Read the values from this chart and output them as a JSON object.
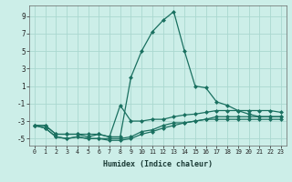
{
  "xlabel": "Humidex (Indice chaleur)",
  "bg_color": "#cceee8",
  "grid_color": "#aad8d0",
  "line_color": "#1a7060",
  "xlim": [
    -0.5,
    23.5
  ],
  "ylim": [
    -5.8,
    10.2
  ],
  "xticks": [
    0,
    1,
    2,
    3,
    4,
    5,
    6,
    7,
    8,
    9,
    10,
    11,
    12,
    13,
    14,
    15,
    16,
    17,
    18,
    19,
    20,
    21,
    22,
    23
  ],
  "yticks": [
    -5,
    -3,
    -1,
    1,
    3,
    5,
    7,
    9
  ],
  "line1": [
    -3.5,
    -3.5,
    -4.5,
    -4.5,
    -4.5,
    -4.8,
    -4.5,
    -4.8,
    -4.8,
    2.0,
    5.0,
    7.2,
    8.5,
    9.5,
    5.0,
    1.0,
    0.8,
    -0.8,
    -1.2,
    -1.8,
    -2.2,
    -2.5,
    -2.5,
    -2.5
  ],
  "line2": [
    -3.5,
    -3.5,
    -4.5,
    -4.5,
    -4.5,
    -4.5,
    -4.5,
    -4.8,
    -1.2,
    -3.0,
    -3.0,
    -2.8,
    -2.8,
    -2.5,
    -2.3,
    -2.2,
    -2.0,
    -1.8,
    -1.8,
    -1.8,
    -1.8,
    -1.8,
    -1.8,
    -2.0
  ],
  "line3": [
    -3.5,
    -3.8,
    -4.8,
    -5.0,
    -4.8,
    -5.0,
    -5.0,
    -5.0,
    -5.0,
    -4.8,
    -4.2,
    -4.0,
    -3.5,
    -3.2,
    -3.2,
    -3.0,
    -2.8,
    -2.5,
    -2.5,
    -2.5,
    -2.5,
    -2.5,
    -2.5,
    -2.5
  ],
  "line4": [
    -3.5,
    -3.8,
    -4.8,
    -5.0,
    -4.8,
    -5.0,
    -5.0,
    -5.2,
    -5.2,
    -5.0,
    -4.5,
    -4.2,
    -3.8,
    -3.5,
    -3.2,
    -3.0,
    -2.8,
    -2.8,
    -2.8,
    -2.8,
    -2.8,
    -2.8,
    -2.8,
    -2.8
  ]
}
